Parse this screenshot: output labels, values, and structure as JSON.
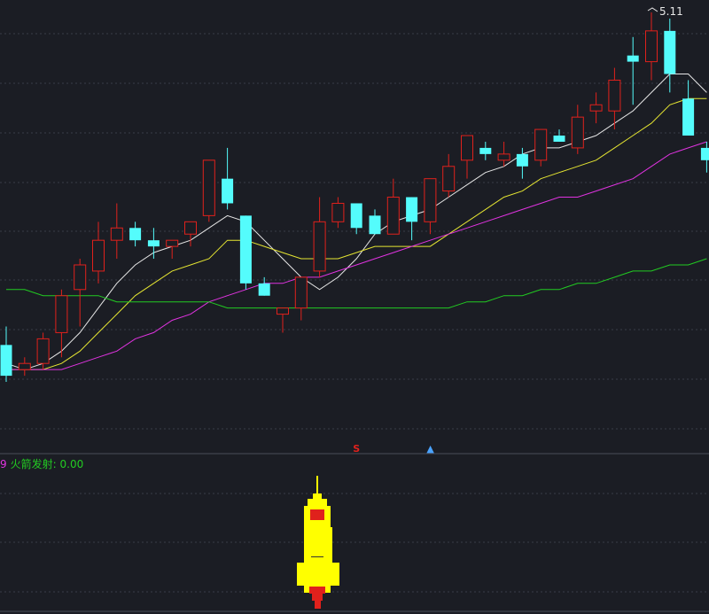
{
  "chart_data": {
    "type": "candlestick",
    "grid": true,
    "candles": [
      {
        "o": 4.57,
        "h": 4.6,
        "l": 4.51,
        "c": 4.52
      },
      {
        "o": 4.53,
        "h": 4.55,
        "l": 4.52,
        "c": 4.54
      },
      {
        "o": 4.54,
        "h": 4.59,
        "l": 4.53,
        "c": 4.58
      },
      {
        "o": 4.59,
        "h": 4.66,
        "l": 4.55,
        "c": 4.65
      },
      {
        "o": 4.66,
        "h": 4.71,
        "l": 4.6,
        "c": 4.7
      },
      {
        "o": 4.69,
        "h": 4.77,
        "l": 4.67,
        "c": 4.74
      },
      {
        "o": 4.74,
        "h": 4.8,
        "l": 4.71,
        "c": 4.76
      },
      {
        "o": 4.76,
        "h": 4.77,
        "l": 4.73,
        "c": 4.74
      },
      {
        "o": 4.74,
        "h": 4.76,
        "l": 4.71,
        "c": 4.73
      },
      {
        "o": 4.73,
        "h": 4.74,
        "l": 4.71,
        "c": 4.74
      },
      {
        "o": 4.75,
        "h": 4.77,
        "l": 4.73,
        "c": 4.77
      },
      {
        "o": 4.78,
        "h": 4.87,
        "l": 4.77,
        "c": 4.87
      },
      {
        "o": 4.84,
        "h": 4.89,
        "l": 4.79,
        "c": 4.8
      },
      {
        "o": 4.78,
        "h": 4.78,
        "l": 4.66,
        "c": 4.67
      },
      {
        "o": 4.67,
        "h": 4.68,
        "l": 4.65,
        "c": 4.65
      },
      {
        "o": 4.62,
        "h": 4.63,
        "l": 4.59,
        "c": 4.63
      },
      {
        "o": 4.63,
        "h": 4.68,
        "l": 4.61,
        "c": 4.68
      },
      {
        "o": 4.69,
        "h": 4.81,
        "l": 4.68,
        "c": 4.77
      },
      {
        "o": 4.77,
        "h": 4.81,
        "l": 4.76,
        "c": 4.8
      },
      {
        "o": 4.8,
        "h": 4.8,
        "l": 4.75,
        "c": 4.76
      },
      {
        "o": 4.78,
        "h": 4.79,
        "l": 4.75,
        "c": 4.75
      },
      {
        "o": 4.75,
        "h": 4.84,
        "l": 4.75,
        "c": 4.81
      },
      {
        "o": 4.81,
        "h": 4.81,
        "l": 4.74,
        "c": 4.77
      },
      {
        "o": 4.77,
        "h": 4.84,
        "l": 4.75,
        "c": 4.84
      },
      {
        "o": 4.82,
        "h": 4.88,
        "l": 4.81,
        "c": 4.86
      },
      {
        "o": 4.87,
        "h": 4.91,
        "l": 4.84,
        "c": 4.91
      },
      {
        "o": 4.89,
        "h": 4.9,
        "l": 4.87,
        "c": 4.88
      },
      {
        "o": 4.87,
        "h": 4.9,
        "l": 4.86,
        "c": 4.88
      },
      {
        "o": 4.88,
        "h": 4.89,
        "l": 4.84,
        "c": 4.86
      },
      {
        "o": 4.87,
        "h": 4.92,
        "l": 4.86,
        "c": 4.92
      },
      {
        "o": 4.91,
        "h": 4.92,
        "l": 4.9,
        "c": 4.9
      },
      {
        "o": 4.89,
        "h": 4.96,
        "l": 4.88,
        "c": 4.94
      },
      {
        "o": 4.95,
        "h": 4.98,
        "l": 4.93,
        "c": 4.96
      },
      {
        "o": 4.95,
        "h": 5.02,
        "l": 4.92,
        "c": 5.0
      },
      {
        "o": 5.04,
        "h": 5.07,
        "l": 4.96,
        "c": 5.03
      },
      {
        "o": 5.03,
        "h": 5.11,
        "l": 5.0,
        "c": 5.08
      },
      {
        "o": 5.08,
        "h": 5.1,
        "l": 4.98,
        "c": 5.01
      },
      {
        "o": 4.97,
        "h": 5.0,
        "l": 4.91,
        "c": 4.91
      },
      {
        "o": 4.89,
        "h": 4.9,
        "l": 4.85,
        "c": 4.87
      }
    ],
    "ma_lines": [
      {
        "color": "#e6e6e6",
        "values": [
          4.54,
          4.53,
          4.54,
          4.56,
          4.59,
          4.63,
          4.67,
          4.7,
          4.72,
          4.73,
          4.74,
          4.76,
          4.78,
          4.77,
          4.74,
          4.71,
          4.68,
          4.66,
          4.68,
          4.71,
          4.75,
          4.77,
          4.78,
          4.79,
          4.81,
          4.83,
          4.85,
          4.86,
          4.88,
          4.89,
          4.89,
          4.9,
          4.91,
          4.93,
          4.95,
          4.98,
          5.01,
          5.01,
          4.98
        ]
      },
      {
        "color": "#e5e532",
        "values": [
          4.53,
          4.53,
          4.53,
          4.54,
          4.56,
          4.59,
          4.62,
          4.65,
          4.67,
          4.69,
          4.7,
          4.71,
          4.74,
          4.74,
          4.73,
          4.72,
          4.71,
          4.71,
          4.71,
          4.72,
          4.73,
          4.73,
          4.73,
          4.73,
          4.75,
          4.77,
          4.79,
          4.81,
          4.82,
          4.84,
          4.85,
          4.86,
          4.87,
          4.89,
          4.91,
          4.93,
          4.96,
          4.97,
          4.97
        ]
      },
      {
        "color": "#e033e0",
        "values": [
          4.53,
          4.53,
          4.53,
          4.53,
          4.54,
          4.55,
          4.56,
          4.58,
          4.59,
          4.61,
          4.62,
          4.64,
          4.65,
          4.66,
          4.67,
          4.67,
          4.68,
          4.68,
          4.69,
          4.7,
          4.71,
          4.72,
          4.73,
          4.74,
          4.75,
          4.76,
          4.77,
          4.78,
          4.79,
          4.8,
          4.81,
          4.81,
          4.82,
          4.83,
          4.84,
          4.86,
          4.88,
          4.89,
          4.9
        ]
      },
      {
        "color": "#22cc22",
        "values": [
          4.66,
          4.66,
          4.65,
          4.65,
          4.65,
          4.65,
          4.64,
          4.64,
          4.64,
          4.64,
          4.64,
          4.64,
          4.63,
          4.63,
          4.63,
          4.63,
          4.63,
          4.63,
          4.63,
          4.63,
          4.63,
          4.63,
          4.63,
          4.63,
          4.63,
          4.64,
          4.64,
          4.65,
          4.65,
          4.66,
          4.66,
          4.67,
          4.67,
          4.68,
          4.69,
          4.69,
          4.7,
          4.7,
          4.71
        ]
      }
    ],
    "peak_label": "5.11",
    "signals": [
      {
        "index": 19,
        "text": "S",
        "color": "#e0211c"
      },
      {
        "index": 23,
        "text": "▲",
        "color": "#4aa3ff"
      }
    ]
  },
  "indicator": {
    "number": "9",
    "name": "火箭发射",
    "value_text": ": 0.00",
    "number_color": "#e033e0",
    "name_color": "#22cc22"
  },
  "colors": {
    "background": "#1b1d24",
    "grid": "#3a3d48",
    "up": "#e0211c",
    "down": "#54fcfc",
    "rocket_body": "#ffff00",
    "rocket_window": "#e0211c",
    "rocket_flame": "#e0211c"
  }
}
